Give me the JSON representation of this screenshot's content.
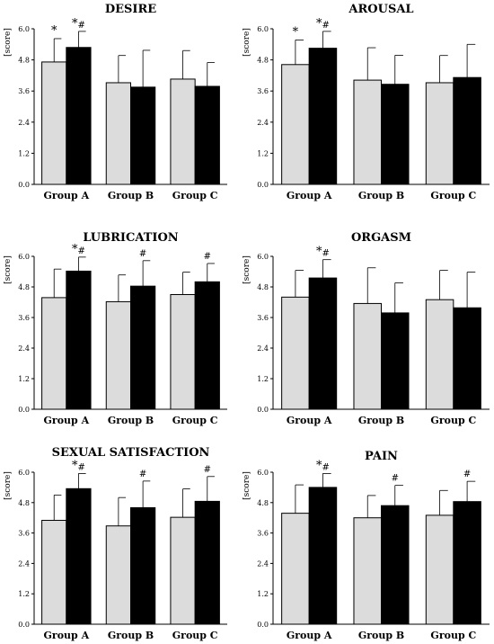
{
  "chart_data": [
    {
      "type": "bar",
      "title": "DESIRE",
      "ylabel": "[score]",
      "categories": [
        "Group A",
        "Group B",
        "Group C"
      ],
      "ylim": [
        0,
        6.0
      ],
      "yticks": [
        "0.0",
        "1.2",
        "2.4",
        "3.6",
        "4.8",
        "6.0"
      ],
      "error_bars": true,
      "series": [
        {
          "color": "#dcdcdc",
          "values": [
            4.72,
            3.92,
            4.06
          ],
          "errors": [
            0.9,
            1.05,
            1.1
          ],
          "markers": [
            "*",
            "",
            ""
          ]
        },
        {
          "color": "#000000",
          "values": [
            5.28,
            3.75,
            3.78
          ],
          "errors": [
            0.62,
            1.42,
            0.92
          ],
          "markers": [
            "*#",
            "",
            ""
          ]
        }
      ]
    },
    {
      "type": "bar",
      "title": "AROUSAL",
      "ylabel": "[score]",
      "categories": [
        "Group A",
        "Group B",
        "Group C"
      ],
      "ylim": [
        0,
        6.0
      ],
      "yticks": [
        "0.0",
        "1.2",
        "2.4",
        "3.6",
        "4.8",
        "6.0"
      ],
      "error_bars": true,
      "series": [
        {
          "color": "#dcdcdc",
          "values": [
            4.62,
            4.02,
            3.92
          ],
          "errors": [
            0.95,
            1.25,
            1.05
          ],
          "markers": [
            "*",
            "",
            ""
          ]
        },
        {
          "color": "#000000",
          "values": [
            5.25,
            3.86,
            4.12
          ],
          "errors": [
            0.65,
            1.12,
            1.28
          ],
          "markers": [
            "*#",
            "",
            ""
          ]
        }
      ]
    },
    {
      "type": "bar",
      "title": "LUBRICATION",
      "ylabel": "[score]",
      "categories": [
        "Group A",
        "Group B",
        "Group C"
      ],
      "ylim": [
        0,
        6.0
      ],
      "yticks": [
        "0.0",
        "1.2",
        "2.4",
        "3.6",
        "4.8",
        "6.0"
      ],
      "error_bars": true,
      "series": [
        {
          "color": "#dcdcdc",
          "values": [
            4.38,
            4.22,
            4.5
          ],
          "errors": [
            1.12,
            1.05,
            0.88
          ],
          "markers": [
            "",
            "",
            ""
          ]
        },
        {
          "color": "#000000",
          "values": [
            5.42,
            4.83,
            5.0
          ],
          "errors": [
            0.55,
            1.0,
            0.72
          ],
          "markers": [
            "*#",
            "#",
            "#"
          ]
        }
      ]
    },
    {
      "type": "bar",
      "title": "ORGASM",
      "ylabel": "[score]",
      "categories": [
        "Group A",
        "Group B",
        "Group C"
      ],
      "ylim": [
        0,
        6.0
      ],
      "yticks": [
        "0.0",
        "1.2",
        "2.4",
        "3.6",
        "4.8",
        "6.0"
      ],
      "error_bars": true,
      "series": [
        {
          "color": "#dcdcdc",
          "values": [
            4.4,
            4.15,
            4.3
          ],
          "errors": [
            1.05,
            1.4,
            1.15
          ],
          "markers": [
            "",
            "",
            ""
          ]
        },
        {
          "color": "#000000",
          "values": [
            5.15,
            3.78,
            3.98
          ],
          "errors": [
            0.72,
            1.18,
            1.4
          ],
          "markers": [
            "*#",
            "",
            ""
          ]
        }
      ]
    },
    {
      "type": "bar",
      "title": "SEXUAL SATISFACTION",
      "ylabel": "[score]",
      "categories": [
        "Group A",
        "Group B",
        "Group C"
      ],
      "ylim": [
        0,
        6.0
      ],
      "yticks": [
        "0.0",
        "1.2",
        "2.4",
        "3.6",
        "4.8",
        "6.0"
      ],
      "error_bars": true,
      "series": [
        {
          "color": "#dcdcdc",
          "values": [
            4.1,
            3.88,
            4.22
          ],
          "errors": [
            1.0,
            1.12,
            1.12
          ],
          "markers": [
            "",
            "",
            ""
          ]
        },
        {
          "color": "#000000",
          "values": [
            5.35,
            4.6,
            4.85
          ],
          "errors": [
            0.6,
            1.05,
            0.98
          ],
          "markers": [
            "*#",
            "#",
            "#"
          ]
        }
      ]
    },
    {
      "type": "bar",
      "title": "PAIN",
      "ylabel": "[score]",
      "categories": [
        "Group A",
        "Group B",
        "Group C"
      ],
      "ylim": [
        0,
        6.0
      ],
      "yticks": [
        "0.0",
        "1.2",
        "2.4",
        "3.6",
        "4.8",
        "6.0"
      ],
      "error_bars": true,
      "series": [
        {
          "color": "#dcdcdc",
          "values": [
            4.38,
            4.2,
            4.3
          ],
          "errors": [
            1.12,
            0.88,
            0.98
          ],
          "markers": [
            "",
            "",
            ""
          ]
        },
        {
          "color": "#000000",
          "values": [
            5.4,
            4.68,
            4.84
          ],
          "errors": [
            0.55,
            0.8,
            0.8
          ],
          "markers": [
            "*#",
            "#",
            "#"
          ]
        }
      ]
    }
  ]
}
